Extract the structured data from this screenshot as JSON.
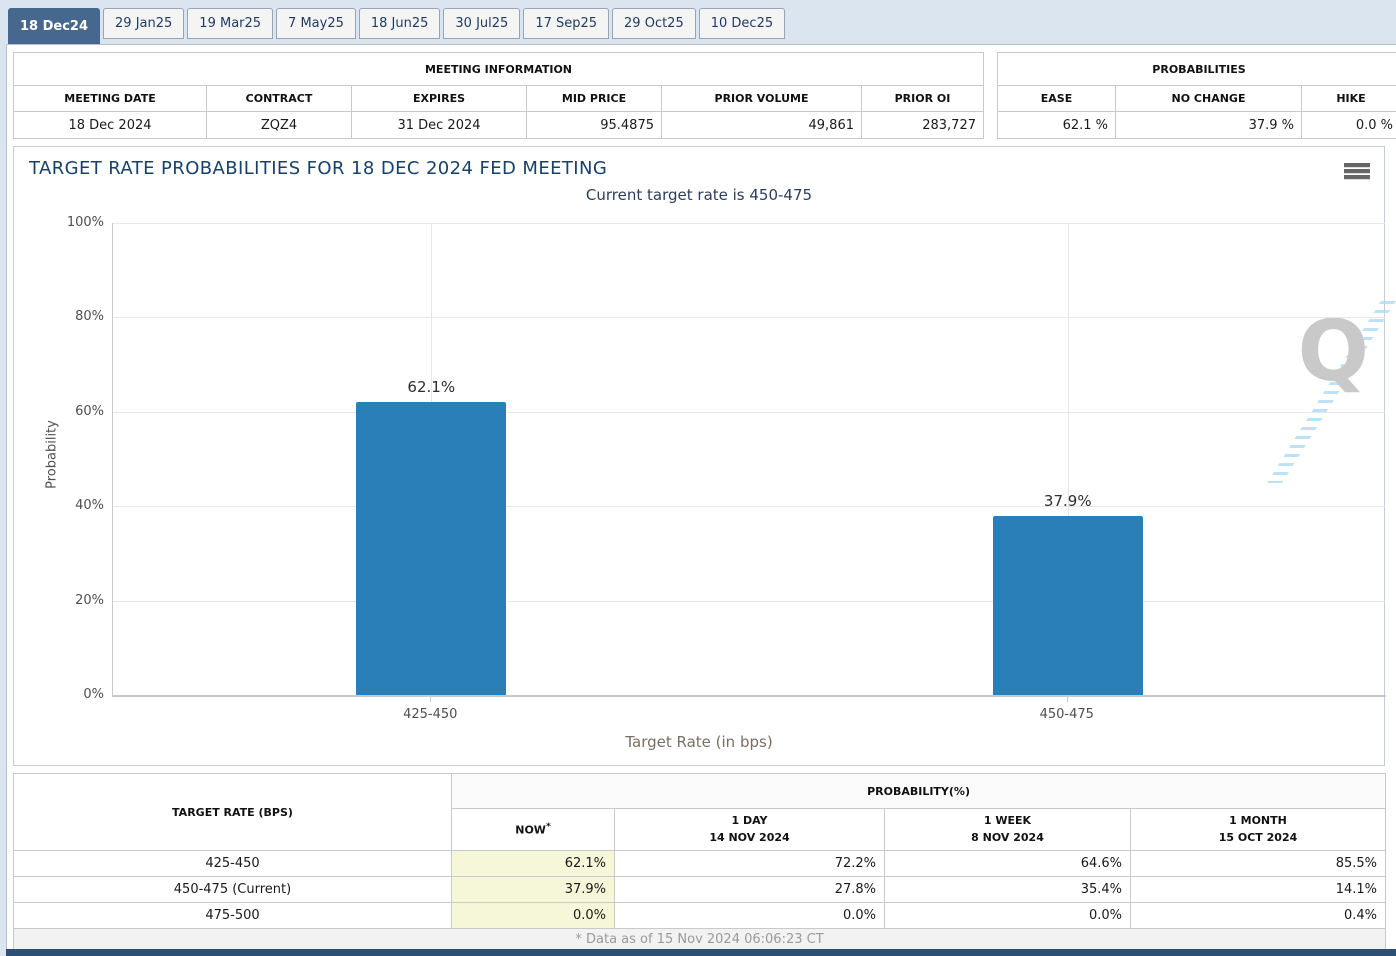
{
  "tabs": [
    {
      "label": "18 Dec24",
      "active": true
    },
    {
      "label": "29 Jan25",
      "active": false
    },
    {
      "label": "19 Mar25",
      "active": false
    },
    {
      "label": "7 May25",
      "active": false
    },
    {
      "label": "18 Jun25",
      "active": false
    },
    {
      "label": "30 Jul25",
      "active": false
    },
    {
      "label": "17 Sep25",
      "active": false
    },
    {
      "label": "29 Oct25",
      "active": false
    },
    {
      "label": "10 Dec25",
      "active": false
    }
  ],
  "meeting_info": {
    "title": "MEETING INFORMATION",
    "columns": [
      "MEETING DATE",
      "CONTRACT",
      "EXPIRES",
      "MID PRICE",
      "PRIOR VOLUME",
      "PRIOR OI"
    ],
    "row": [
      "18 Dec 2024",
      "ZQZ4",
      "31 Dec 2024",
      "95.4875",
      "49,861",
      "283,727"
    ]
  },
  "probabilities": {
    "title": "PROBABILITIES",
    "columns": [
      "EASE",
      "NO CHANGE",
      "HIKE"
    ],
    "row": [
      "62.1 %",
      "37.9 %",
      "0.0 %"
    ]
  },
  "chart_data": {
    "type": "bar",
    "title": "TARGET RATE PROBABILITIES FOR 18 DEC 2024 FED MEETING",
    "subtitle": "Current target rate is 450-475",
    "categories": [
      "425-450",
      "450-475"
    ],
    "values": [
      62.1,
      37.9
    ],
    "data_labels": [
      "62.1%",
      "37.9%"
    ],
    "xlabel": "Target Rate (in bps)",
    "ylabel": "Probability",
    "ylim": [
      0,
      100
    ],
    "ytick_step": 20,
    "ytick_suffix": "%",
    "grid": true,
    "legend": "none",
    "bar_color": "#2b7fb8"
  },
  "watermark": {
    "letter": "Q"
  },
  "menu_icon": "hamburger-menu",
  "bottom_table": {
    "rate_header": "TARGET RATE (BPS)",
    "group_header": "PROBABILITY(%)",
    "sub_headers": [
      {
        "line1": "NOW",
        "sup": "*",
        "line2": ""
      },
      {
        "line1": "1 DAY",
        "line2": "14 NOV 2024"
      },
      {
        "line1": "1 WEEK",
        "line2": "8 NOV 2024"
      },
      {
        "line1": "1 MONTH",
        "line2": "15 OCT 2024"
      }
    ],
    "rows": [
      [
        "425-450",
        "62.1%",
        "72.2%",
        "64.6%",
        "85.5%"
      ],
      [
        "450-475 (Current)",
        "37.9%",
        "27.8%",
        "35.4%",
        "14.1%"
      ],
      [
        "475-500",
        "0.0%",
        "0.0%",
        "0.0%",
        "0.4%"
      ]
    ],
    "footnote": "* Data as of 15 Nov 2024 06:06:23 CT"
  },
  "colors": {
    "active_tab": "#47688e",
    "bar": "#2b7fb8",
    "now_column_highlight": "#f6f6d8",
    "bottom_bar": "#2c5074",
    "title_navy": "#17406b"
  }
}
